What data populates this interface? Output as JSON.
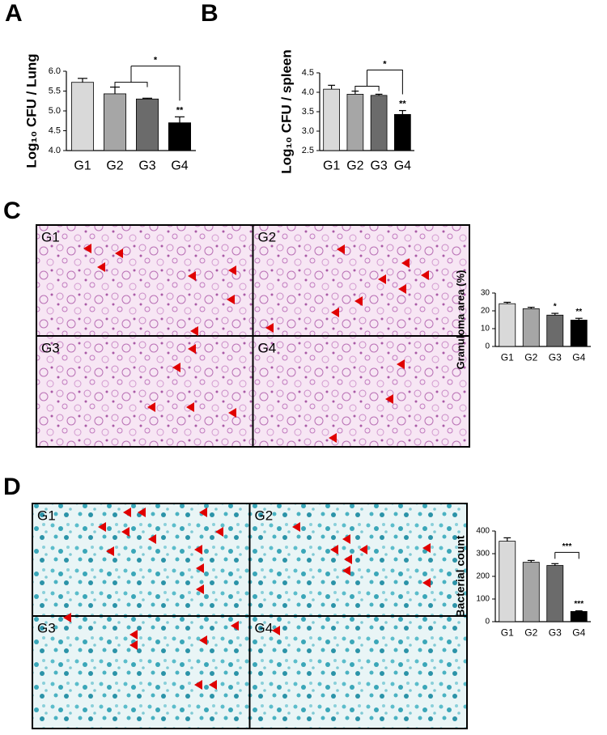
{
  "panel_labels": [
    "A",
    "B",
    "C",
    "D"
  ],
  "micrographs": {
    "C": [
      "G1",
      "G2",
      "G3",
      "G4"
    ],
    "D": [
      "G1",
      "G2",
      "G3",
      "G4"
    ]
  },
  "chart_data": [
    {
      "type": "bar",
      "y_label": "Log₁₀ CFU / Lung",
      "categories": [
        "G1",
        "G2",
        "G3",
        "G4"
      ],
      "values": [
        5.72,
        5.43,
        5.3,
        4.7
      ],
      "errors": [
        0.1,
        0.17,
        0.02,
        0.15
      ],
      "colors": [
        "#d9d9d9",
        "#a6a6a6",
        "#6b6b6b",
        "#000000"
      ],
      "ylim": [
        4,
        6
      ],
      "yticks": [
        {
          "value": 4,
          "label": "4.0"
        },
        4.5,
        {
          "value": 5,
          "label": "5.0"
        },
        5.5,
        {
          "value": 6,
          "label": "6.0"
        }
      ],
      "annotations": [
        {
          "text": "**",
          "category": "G4"
        }
      ],
      "brackets": [
        {
          "text": "*",
          "left": [
            "G2",
            "G3"
          ],
          "right": "G4"
        }
      ]
    },
    {
      "type": "bar",
      "y_label": "Log₁₀ CFU / spleen",
      "categories": [
        "G1",
        "G2",
        "G3",
        "G4"
      ],
      "values": [
        4.08,
        3.95,
        3.92,
        3.43
      ],
      "errors": [
        0.1,
        0.08,
        0.03,
        0.1
      ],
      "colors": [
        "#d9d9d9",
        "#a6a6a6",
        "#6b6b6b",
        "#000000"
      ],
      "ylim": [
        2.5,
        4.5
      ],
      "yticks": [
        2.5,
        {
          "value": 3,
          "label": "3.0"
        },
        3.5,
        {
          "value": 4,
          "label": "4.0"
        },
        4.5
      ],
      "annotations": [
        {
          "text": "**",
          "category": "G4"
        }
      ],
      "brackets": [
        {
          "text": "*",
          "left": [
            "G2",
            "G3"
          ],
          "right": "G4"
        }
      ]
    },
    {
      "type": "bar",
      "y_label": "Granuloma area (%)",
      "categories": [
        "G1",
        "G2",
        "G3",
        "G4"
      ],
      "values": [
        24,
        21.2,
        17.6,
        14.8
      ],
      "errors": [
        0.8,
        0.8,
        1,
        1
      ],
      "colors": [
        "#d9d9d9",
        "#a6a6a6",
        "#6b6b6b",
        "#000000"
      ],
      "ylim": [
        0,
        30
      ],
      "yticks": [
        0,
        10,
        20,
        30
      ],
      "annotations": [
        {
          "text": "*",
          "category": "G3"
        },
        {
          "text": "**",
          "category": "G4"
        }
      ],
      "brackets": []
    },
    {
      "type": "bar",
      "y_label": "Bacterial count",
      "categories": [
        "G1",
        "G2",
        "G3",
        "G4"
      ],
      "values": [
        355,
        262,
        248,
        45
      ],
      "errors": [
        15,
        8,
        8,
        3
      ],
      "colors": [
        "#d9d9d9",
        "#a6a6a6",
        "#6b6b6b",
        "#000000"
      ],
      "ylim": [
        0,
        400
      ],
      "yticks": [
        0,
        100,
        200,
        300,
        400
      ],
      "annotations": [
        {
          "text": "***",
          "category": "G4"
        }
      ],
      "brackets": [
        {
          "text": "***",
          "left": [
            "G3"
          ],
          "right": "G4"
        }
      ]
    }
  ]
}
